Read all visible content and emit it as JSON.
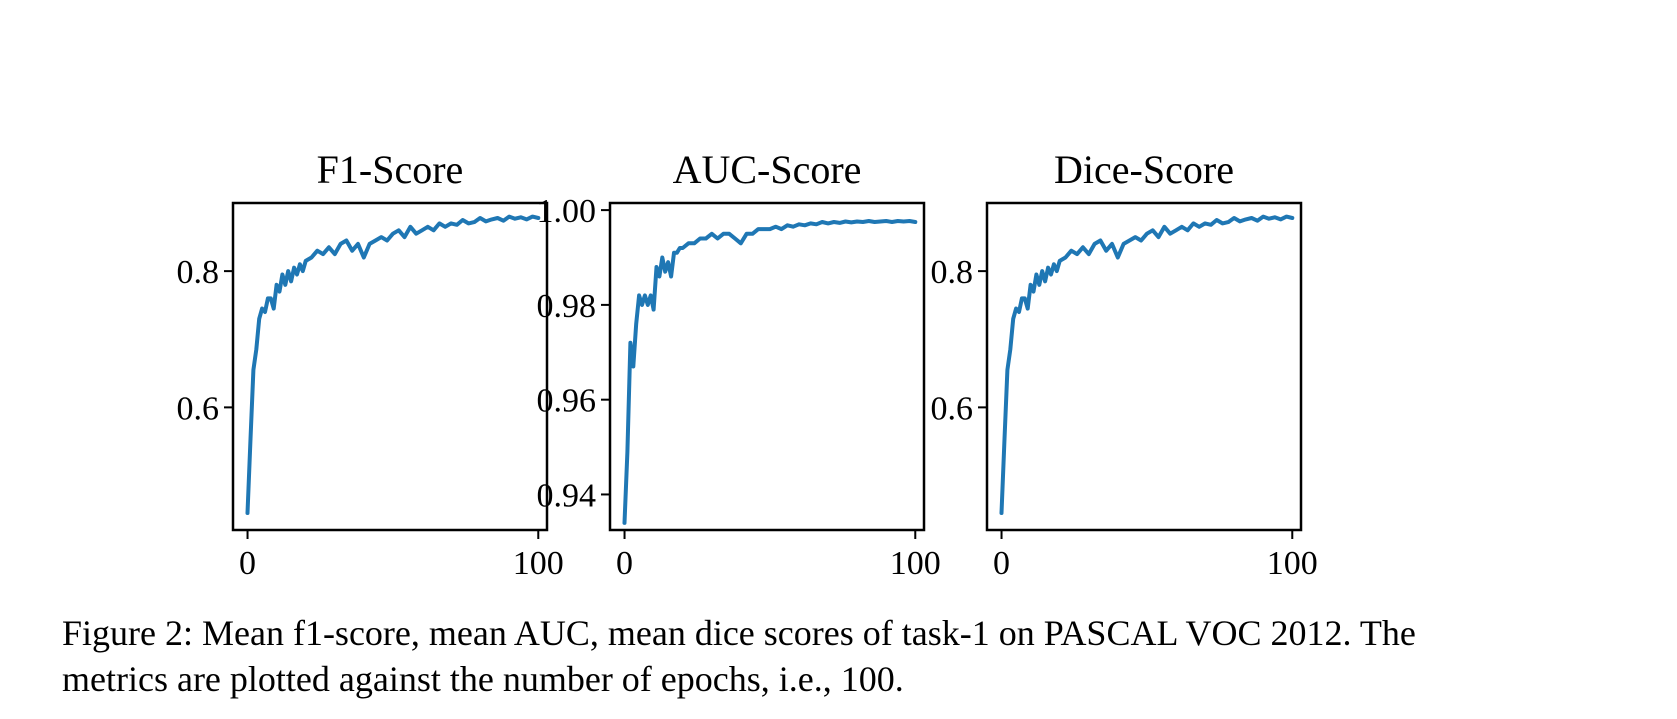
{
  "figure": {
    "caption_line1": "Figure 2: Mean f1-score, mean AUC, mean dice scores of task-1 on PASCAL VOC 2012.  The",
    "caption_line2": "metrics are plotted against the number of epochs, i.e., 100."
  },
  "line_color": "#1f77b4",
  "chart_data": [
    {
      "type": "line",
      "title": "F1-Score",
      "xlabel": "",
      "ylabel": "",
      "xlim": [
        -5,
        103
      ],
      "ylim": [
        0.42,
        0.9
      ],
      "xticks": [
        0,
        100
      ],
      "xtick_labels": [
        "0",
        "100"
      ],
      "yticks": [
        0.6,
        0.8
      ],
      "ytick_labels": [
        "0.6",
        "0.8"
      ],
      "grid": false,
      "x": [
        0,
        1,
        2,
        3,
        4,
        5,
        6,
        7,
        8,
        9,
        10,
        11,
        12,
        13,
        14,
        15,
        16,
        17,
        18,
        19,
        20,
        22,
        24,
        26,
        28,
        30,
        32,
        34,
        36,
        38,
        40,
        42,
        44,
        46,
        48,
        50,
        52,
        54,
        56,
        58,
        60,
        62,
        64,
        66,
        68,
        70,
        72,
        74,
        76,
        78,
        80,
        82,
        84,
        86,
        88,
        90,
        92,
        94,
        96,
        98,
        100
      ],
      "y": [
        0.445,
        0.55,
        0.655,
        0.685,
        0.73,
        0.745,
        0.74,
        0.76,
        0.76,
        0.745,
        0.78,
        0.77,
        0.795,
        0.78,
        0.8,
        0.785,
        0.805,
        0.795,
        0.81,
        0.8,
        0.815,
        0.82,
        0.83,
        0.825,
        0.835,
        0.825,
        0.84,
        0.845,
        0.83,
        0.84,
        0.82,
        0.84,
        0.845,
        0.85,
        0.845,
        0.855,
        0.86,
        0.85,
        0.865,
        0.855,
        0.86,
        0.865,
        0.86,
        0.87,
        0.865,
        0.87,
        0.868,
        0.875,
        0.87,
        0.872,
        0.878,
        0.873,
        0.876,
        0.878,
        0.874,
        0.88,
        0.877,
        0.879,
        0.876,
        0.88,
        0.878
      ]
    },
    {
      "type": "line",
      "title": "AUC-Score",
      "xlabel": "",
      "ylabel": "",
      "xlim": [
        -5,
        103
      ],
      "ylim": [
        0.9325,
        1.0015
      ],
      "xticks": [
        0,
        100
      ],
      "xtick_labels": [
        "0",
        "100"
      ],
      "yticks": [
        0.94,
        0.96,
        0.98,
        1.0
      ],
      "ytick_labels": [
        "0.94",
        "0.96",
        "0.98",
        "1.00"
      ],
      "grid": false,
      "x": [
        0,
        1,
        2,
        3,
        4,
        5,
        6,
        7,
        8,
        9,
        10,
        11,
        12,
        13,
        14,
        15,
        16,
        17,
        18,
        19,
        20,
        22,
        24,
        26,
        28,
        30,
        32,
        34,
        36,
        38,
        40,
        42,
        44,
        46,
        48,
        50,
        52,
        54,
        56,
        58,
        60,
        62,
        64,
        66,
        68,
        70,
        72,
        74,
        76,
        78,
        80,
        82,
        84,
        86,
        88,
        90,
        92,
        94,
        96,
        98,
        100
      ],
      "y": [
        0.934,
        0.949,
        0.972,
        0.967,
        0.976,
        0.982,
        0.98,
        0.982,
        0.98,
        0.982,
        0.979,
        0.988,
        0.986,
        0.99,
        0.987,
        0.989,
        0.986,
        0.991,
        0.991,
        0.992,
        0.992,
        0.993,
        0.993,
        0.994,
        0.994,
        0.995,
        0.994,
        0.995,
        0.995,
        0.994,
        0.993,
        0.995,
        0.995,
        0.996,
        0.996,
        0.996,
        0.9965,
        0.996,
        0.9968,
        0.9965,
        0.997,
        0.9968,
        0.9972,
        0.997,
        0.9975,
        0.9972,
        0.9975,
        0.9973,
        0.9976,
        0.9974,
        0.9976,
        0.9975,
        0.9977,
        0.9975,
        0.9976,
        0.9977,
        0.9975,
        0.9977,
        0.9976,
        0.9977,
        0.9975
      ]
    },
    {
      "type": "line",
      "title": "Dice-Score",
      "xlabel": "",
      "ylabel": "",
      "xlim": [
        -5,
        103
      ],
      "ylim": [
        0.42,
        0.9
      ],
      "xticks": [
        0,
        100
      ],
      "xtick_labels": [
        "0",
        "100"
      ],
      "yticks": [
        0.6,
        0.8
      ],
      "ytick_labels": [
        "0.6",
        "0.8"
      ],
      "grid": false,
      "x": [
        0,
        1,
        2,
        3,
        4,
        5,
        6,
        7,
        8,
        9,
        10,
        11,
        12,
        13,
        14,
        15,
        16,
        17,
        18,
        19,
        20,
        22,
        24,
        26,
        28,
        30,
        32,
        34,
        36,
        38,
        40,
        42,
        44,
        46,
        48,
        50,
        52,
        54,
        56,
        58,
        60,
        62,
        64,
        66,
        68,
        70,
        72,
        74,
        76,
        78,
        80,
        82,
        84,
        86,
        88,
        90,
        92,
        94,
        96,
        98,
        100
      ],
      "y": [
        0.445,
        0.55,
        0.655,
        0.685,
        0.73,
        0.745,
        0.74,
        0.76,
        0.76,
        0.745,
        0.78,
        0.77,
        0.795,
        0.78,
        0.8,
        0.785,
        0.805,
        0.795,
        0.81,
        0.8,
        0.815,
        0.82,
        0.83,
        0.825,
        0.835,
        0.825,
        0.84,
        0.845,
        0.83,
        0.84,
        0.82,
        0.84,
        0.845,
        0.85,
        0.845,
        0.855,
        0.86,
        0.85,
        0.865,
        0.855,
        0.86,
        0.865,
        0.86,
        0.87,
        0.865,
        0.87,
        0.868,
        0.875,
        0.87,
        0.872,
        0.878,
        0.873,
        0.876,
        0.878,
        0.874,
        0.88,
        0.877,
        0.879,
        0.876,
        0.88,
        0.878
      ]
    }
  ]
}
